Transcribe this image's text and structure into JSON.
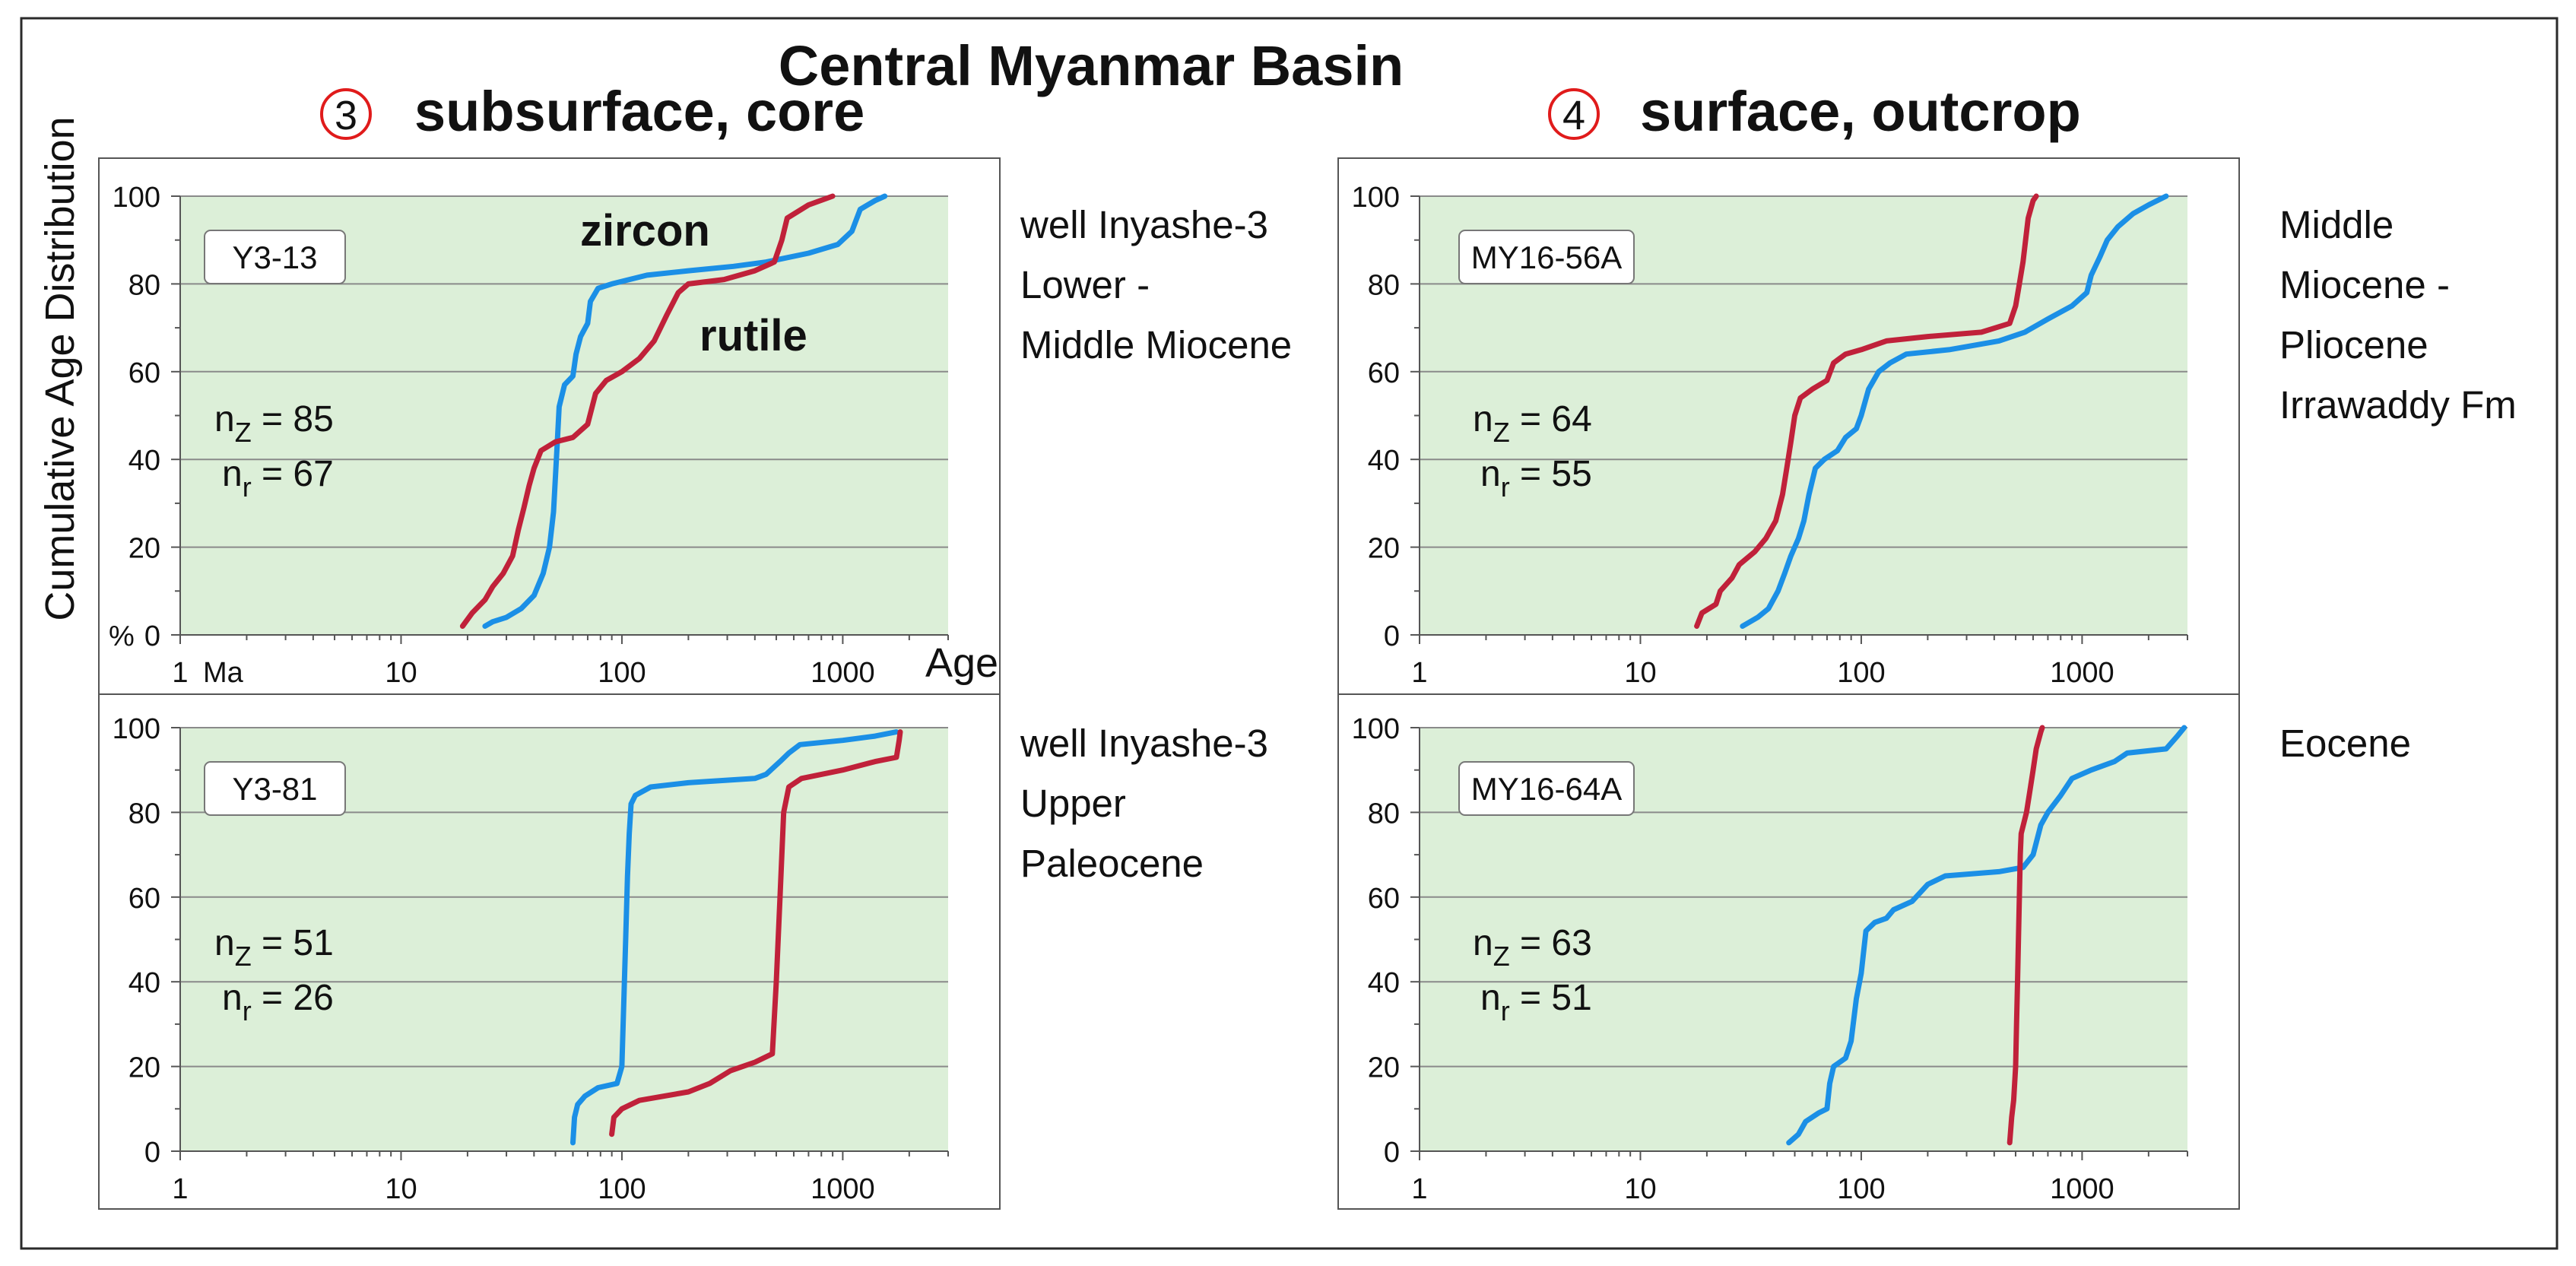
{
  "figure": {
    "title": "Central Myanmar Basin",
    "y_axis_label": "Cumulative Age Distribution",
    "x_axis_label": "Age",
    "x_unit": "Ma",
    "percent_label": "%"
  },
  "columns": [
    {
      "marker": "3",
      "label": "subsurface, core"
    },
    {
      "marker": "4",
      "label": "surface, outcrop"
    }
  ],
  "descriptions": [
    [
      "well Inyashe-3",
      "Lower -",
      "Middle Miocene"
    ],
    [
      "Middle",
      "Miocene -",
      "Pliocene",
      "Irrawaddy Fm"
    ],
    [
      "well Inyashe-3",
      "Upper",
      "Paleocene"
    ],
    [
      "Eocene"
    ]
  ],
  "series_labels": {
    "zircon": "zircon",
    "rutile": "rutile"
  },
  "colors": {
    "zircon": "#1b8fe6",
    "rutile": "#c0213a",
    "plot_bg": "#dcefd8",
    "circle_marker": "#e01b1b",
    "gridline": "#8a8a8a"
  },
  "chart_data": [
    {
      "type": "line",
      "sample": "Y3-13",
      "n_z": "85",
      "n_r": "67",
      "xscale": "log",
      "xlim": [
        1,
        3000
      ],
      "ylim": [
        0,
        100
      ],
      "xticks": [
        "1",
        "10",
        "100",
        "1000"
      ],
      "yticks": [
        "0",
        "20",
        "40",
        "60",
        "80",
        "100"
      ],
      "series": [
        {
          "name": "zircon",
          "points": [
            [
              24,
              2
            ],
            [
              26,
              3
            ],
            [
              30,
              4
            ],
            [
              35,
              6
            ],
            [
              40,
              9
            ],
            [
              44,
              14
            ],
            [
              47,
              20
            ],
            [
              49,
              28
            ],
            [
              50,
              36
            ],
            [
              51,
              44
            ],
            [
              52,
              52
            ],
            [
              55,
              57
            ],
            [
              60,
              59
            ],
            [
              62,
              64
            ],
            [
              65,
              68
            ],
            [
              70,
              71
            ],
            [
              72,
              76
            ],
            [
              78,
              79
            ],
            [
              90,
              80
            ],
            [
              130,
              82
            ],
            [
              200,
              83
            ],
            [
              320,
              84
            ],
            [
              450,
              85
            ],
            [
              700,
              87
            ],
            [
              950,
              89
            ],
            [
              1100,
              92
            ],
            [
              1200,
              97
            ],
            [
              1400,
              99
            ],
            [
              1550,
              100
            ]
          ]
        },
        {
          "name": "rutile",
          "points": [
            [
              19,
              2
            ],
            [
              21,
              5
            ],
            [
              24,
              8
            ],
            [
              26,
              11
            ],
            [
              29,
              14
            ],
            [
              32,
              18
            ],
            [
              34,
              24
            ],
            [
              36,
              29
            ],
            [
              38,
              34
            ],
            [
              40,
              38
            ],
            [
              43,
              42
            ],
            [
              50,
              44
            ],
            [
              60,
              45
            ],
            [
              70,
              48
            ],
            [
              76,
              55
            ],
            [
              85,
              58
            ],
            [
              100,
              60
            ],
            [
              120,
              63
            ],
            [
              140,
              67
            ],
            [
              160,
              73
            ],
            [
              180,
              78
            ],
            [
              200,
              80
            ],
            [
              290,
              81
            ],
            [
              400,
              83
            ],
            [
              490,
              85
            ],
            [
              530,
              90
            ],
            [
              560,
              95
            ],
            [
              700,
              98
            ],
            [
              900,
              100
            ]
          ]
        }
      ]
    },
    {
      "type": "line",
      "sample": "MY16-56A",
      "n_z": "64",
      "n_r": "55",
      "xscale": "log",
      "xlim": [
        1,
        3000
      ],
      "ylim": [
        0,
        100
      ],
      "xticks": [
        "1",
        "10",
        "100",
        "1000"
      ],
      "yticks": [
        "0",
        "20",
        "40",
        "60",
        "80",
        "100"
      ],
      "series": [
        {
          "name": "zircon",
          "points": [
            [
              29,
              2
            ],
            [
              34,
              4
            ],
            [
              38,
              6
            ],
            [
              42,
              10
            ],
            [
              45,
              14
            ],
            [
              48,
              18
            ],
            [
              52,
              22
            ],
            [
              55,
              26
            ],
            [
              58,
              32
            ],
            [
              62,
              38
            ],
            [
              68,
              40
            ],
            [
              78,
              42
            ],
            [
              85,
              45
            ],
            [
              95,
              47
            ],
            [
              100,
              50
            ],
            [
              108,
              56
            ],
            [
              120,
              60
            ],
            [
              135,
              62
            ],
            [
              160,
              64
            ],
            [
              250,
              65
            ],
            [
              420,
              67
            ],
            [
              550,
              69
            ],
            [
              700,
              72
            ],
            [
              900,
              75
            ],
            [
              1050,
              78
            ],
            [
              1100,
              82
            ],
            [
              1200,
              86
            ],
            [
              1300,
              90
            ],
            [
              1450,
              93
            ],
            [
              1700,
              96
            ],
            [
              2000,
              98
            ],
            [
              2400,
              100
            ]
          ]
        },
        {
          "name": "rutile",
          "points": [
            [
              18,
              2
            ],
            [
              19,
              5
            ],
            [
              22,
              7
            ],
            [
              23,
              10
            ],
            [
              26,
              13
            ],
            [
              28,
              16
            ],
            [
              33,
              19
            ],
            [
              37,
              22
            ],
            [
              41,
              26
            ],
            [
              44,
              32
            ],
            [
              46,
              38
            ],
            [
              48,
              44
            ],
            [
              50,
              50
            ],
            [
              53,
              54
            ],
            [
              60,
              56
            ],
            [
              70,
              58
            ],
            [
              75,
              62
            ],
            [
              85,
              64
            ],
            [
              100,
              65
            ],
            [
              130,
              67
            ],
            [
              200,
              68
            ],
            [
              350,
              69
            ],
            [
              470,
              71
            ],
            [
              500,
              75
            ],
            [
              520,
              80
            ],
            [
              540,
              85
            ],
            [
              555,
              90
            ],
            [
              570,
              95
            ],
            [
              600,
              99
            ],
            [
              620,
              100
            ]
          ]
        }
      ]
    },
    {
      "type": "line",
      "sample": "Y3-81",
      "n_z": "51",
      "n_r": "26",
      "xscale": "log",
      "xlim": [
        1,
        3000
      ],
      "ylim": [
        0,
        100
      ],
      "xticks": [
        "1",
        "10",
        "100",
        "1000"
      ],
      "yticks": [
        "0",
        "20",
        "40",
        "60",
        "80",
        "100"
      ],
      "series": [
        {
          "name": "zircon",
          "points": [
            [
              60,
              2
            ],
            [
              61,
              8
            ],
            [
              63,
              11
            ],
            [
              68,
              13
            ],
            [
              78,
              15
            ],
            [
              95,
              16
            ],
            [
              100,
              20
            ],
            [
              102,
              35
            ],
            [
              104,
              50
            ],
            [
              106,
              65
            ],
            [
              108,
              75
            ],
            [
              110,
              82
            ],
            [
              115,
              84
            ],
            [
              135,
              86
            ],
            [
              200,
              87
            ],
            [
              400,
              88
            ],
            [
              450,
              89
            ],
            [
              520,
              92
            ],
            [
              570,
              94
            ],
            [
              640,
              96
            ],
            [
              1000,
              97
            ],
            [
              1400,
              98
            ],
            [
              1750,
              99
            ]
          ]
        },
        {
          "name": "rutile",
          "points": [
            [
              90,
              4
            ],
            [
              92,
              8
            ],
            [
              100,
              10
            ],
            [
              120,
              12
            ],
            [
              200,
              14
            ],
            [
              250,
              16
            ],
            [
              310,
              19
            ],
            [
              400,
              21
            ],
            [
              480,
              23
            ],
            [
              500,
              40
            ],
            [
              520,
              60
            ],
            [
              540,
              80
            ],
            [
              570,
              86
            ],
            [
              650,
              88
            ],
            [
              1000,
              90
            ],
            [
              1400,
              92
            ],
            [
              1750,
              93
            ],
            [
              1800,
              97
            ],
            [
              1820,
              99
            ]
          ]
        }
      ]
    },
    {
      "type": "line",
      "sample": "MY16-64A",
      "n_z": "63",
      "n_r": "51",
      "xscale": "log",
      "xlim": [
        1,
        3000
      ],
      "ylim": [
        0,
        100
      ],
      "xticks": [
        "1",
        "10",
        "100",
        "1000"
      ],
      "yticks": [
        "0",
        "20",
        "40",
        "60",
        "80",
        "100"
      ],
      "series": [
        {
          "name": "zircon",
          "points": [
            [
              47,
              2
            ],
            [
              52,
              4
            ],
            [
              56,
              7
            ],
            [
              64,
              9
            ],
            [
              70,
              10
            ],
            [
              72,
              16
            ],
            [
              75,
              20
            ],
            [
              85,
              22
            ],
            [
              90,
              26
            ],
            [
              95,
              36
            ],
            [
              100,
              42
            ],
            [
              105,
              52
            ],
            [
              115,
              54
            ],
            [
              130,
              55
            ],
            [
              140,
              57
            ],
            [
              170,
              59
            ],
            [
              200,
              63
            ],
            [
              240,
              65
            ],
            [
              420,
              66
            ],
            [
              540,
              67
            ],
            [
              600,
              70
            ],
            [
              650,
              77
            ],
            [
              700,
              80
            ],
            [
              800,
              84
            ],
            [
              900,
              88
            ],
            [
              1100,
              90
            ],
            [
              1400,
              92
            ],
            [
              1600,
              94
            ],
            [
              2400,
              95
            ],
            [
              2700,
              98
            ],
            [
              2900,
              100
            ]
          ]
        },
        {
          "name": "rutile",
          "points": [
            [
              470,
              2
            ],
            [
              480,
              8
            ],
            [
              490,
              12
            ],
            [
              500,
              20
            ],
            [
              505,
              30
            ],
            [
              510,
              40
            ],
            [
              515,
              50
            ],
            [
              520,
              60
            ],
            [
              525,
              70
            ],
            [
              530,
              75
            ],
            [
              560,
              80
            ],
            [
              580,
              85
            ],
            [
              600,
              90
            ],
            [
              620,
              95
            ],
            [
              650,
              99
            ],
            [
              660,
              100
            ]
          ]
        }
      ]
    }
  ]
}
